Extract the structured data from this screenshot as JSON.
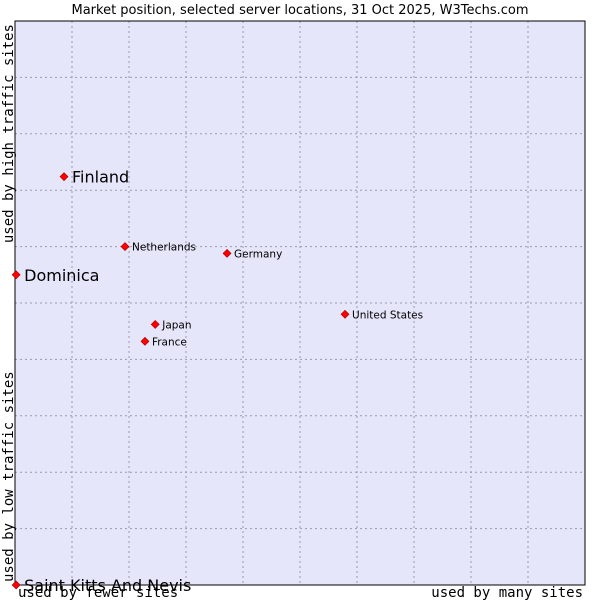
{
  "chart_data": {
    "type": "scatter",
    "title": "Market position, selected server locations, 31 Oct 2025, W3Techs.com",
    "xlabel_left": "used by fewer sites",
    "xlabel_right": "used by many sites",
    "ylabel_bottom": "used by low traffic sites",
    "ylabel_top": "used by high traffic sites",
    "xlim": [
      0,
      10
    ],
    "ylim": [
      0,
      10
    ],
    "grid": true,
    "marker_color": "#ff0000",
    "plot_background": "#e6e6fa",
    "points": [
      {
        "label": "Finland",
        "x": 0.86,
        "y": 7.24,
        "size": "large"
      },
      {
        "label": "Dominica",
        "x": 0.02,
        "y": 5.5,
        "size": "large"
      },
      {
        "label": "Saint Kitts And Nevis",
        "x": 0.02,
        "y": 0.0,
        "size": "large"
      },
      {
        "label": "Netherlands",
        "x": 1.93,
        "y": 6.0,
        "size": "small"
      },
      {
        "label": "Germany",
        "x": 3.72,
        "y": 5.88,
        "size": "small"
      },
      {
        "label": "United States",
        "x": 5.79,
        "y": 4.8,
        "size": "small"
      },
      {
        "label": "Japan",
        "x": 2.46,
        "y": 4.62,
        "size": "small"
      },
      {
        "label": "France",
        "x": 2.28,
        "y": 4.32,
        "size": "small"
      }
    ]
  }
}
